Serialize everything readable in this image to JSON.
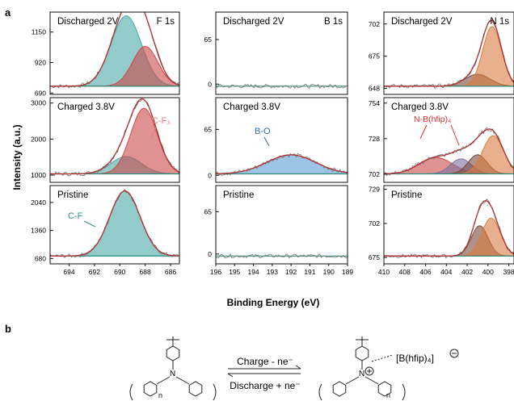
{
  "panel_a_label": "a",
  "panel_b_label": "b",
  "ylabel": "Intensity (a.u.)",
  "xlabel": "Binding Energy (eV)",
  "columns": [
    {
      "element": "F 1s",
      "xticks": [
        "694",
        "692",
        "690",
        "688",
        "686"
      ]
    },
    {
      "element": "B 1s",
      "xticks": [
        "196",
        "195",
        "194",
        "193",
        "192",
        "191",
        "190",
        "189"
      ]
    },
    {
      "element": "N 1s",
      "xticks": [
        "410",
        "408",
        "406",
        "404",
        "402",
        "400",
        "398"
      ]
    }
  ],
  "states": [
    "Discharged 2V",
    "Charged 3.8V",
    "Pristine"
  ],
  "annotations": {
    "cf3": "C-F₃",
    "cf": "C-F",
    "bo": "B-O",
    "nb": "N-B(hfip)₄"
  },
  "colors": {
    "teal": "#4aa9a6",
    "red": "#cc4747",
    "brown": "#7a4a3a",
    "orange": "#d97b3f",
    "blue": "#5b9bd5",
    "purple": "#7f6f9f",
    "envelope_red": "#b03030",
    "raw_gray": "#777777",
    "callout_pink": "#e07a7a",
    "callout_red": "#e03030",
    "callout_blue": "#2f6fb0",
    "callout_teal": "#2e8b86"
  },
  "scheme": {
    "forward": "Charge - ne⁻",
    "reverse": "Discharge + ne⁻",
    "anion": "[B(hfip)₄]",
    "subscript_n": "n"
  },
  "chart_data": [
    {
      "type": "area",
      "panel": "F 1s / Discharged 2V",
      "xlim": [
        695.5,
        685.3
      ],
      "yticks": [
        690,
        920,
        1150
      ],
      "ylim": [
        680,
        1300
      ],
      "series": [
        {
          "center": 689.5,
          "height": 530,
          "width": 1.2
        },
        {
          "center": 688.0,
          "height": 300,
          "width": 1.0
        }
      ]
    },
    {
      "type": "area",
      "panel": "F 1s / Charged 3.8V",
      "xlim": [
        695.5,
        685.3
      ],
      "yticks": [
        1000,
        2000,
        3000
      ],
      "ylim": [
        800,
        3150
      ],
      "series": [
        {
          "center": 689.5,
          "height": 480,
          "width": 1.2
        },
        {
          "center": 688.1,
          "height": 1820,
          "width": 1.05
        }
      ]
    },
    {
      "type": "area",
      "panel": "F 1s / Pristine",
      "xlim": [
        695.5,
        685.3
      ],
      "yticks": [
        680,
        1360,
        2040
      ],
      "ylim": [
        550,
        2450
      ],
      "series": [
        {
          "center": 689.6,
          "height": 1580,
          "width": 1.2
        }
      ]
    },
    {
      "type": "line",
      "panel": "B 1s / Discharged 2V",
      "xlim": [
        196,
        189
      ],
      "yticks": [
        0,
        65
      ],
      "ylim": [
        -15,
        105
      ]
    },
    {
      "type": "area",
      "panel": "B 1s / Charged 3.8V",
      "xlim": [
        196,
        189
      ],
      "yticks": [
        0,
        65
      ],
      "ylim": [
        -10,
        110
      ],
      "series": [
        {
          "center": 192.0,
          "height": 27,
          "width": 1.3
        }
      ]
    },
    {
      "type": "line",
      "panel": "B 1s / Pristine",
      "xlim": [
        196,
        189
      ],
      "yticks": [
        0,
        65
      ],
      "ylim": [
        -15,
        105
      ]
    },
    {
      "type": "area",
      "panel": "N 1s / Discharged 2V",
      "xlim": [
        410,
        397.5
      ],
      "yticks": [
        648,
        675,
        702
      ],
      "ylim": [
        643,
        712
      ],
      "series": [
        {
          "center": 401.0,
          "height": 10,
          "width": 1.2
        },
        {
          "center": 399.6,
          "height": 50,
          "width": 0.9
        }
      ]
    },
    {
      "type": "area",
      "panel": "N 1s / Charged 3.8V",
      "xlim": [
        410,
        397.5
      ],
      "yticks": [
        702,
        728,
        754
      ],
      "ylim": [
        696,
        758
      ],
      "series": [
        {
          "center": 405.0,
          "height": 12,
          "width": 1.6
        },
        {
          "center": 402.6,
          "height": 11,
          "width": 1.0
        },
        {
          "center": 401.0,
          "height": 14,
          "width": 0.9
        },
        {
          "center": 399.5,
          "height": 28,
          "width": 1.0
        }
      ]
    },
    {
      "type": "area",
      "panel": "N 1s / Pristine",
      "xlim": [
        410,
        397.5
      ],
      "yticks": [
        675,
        702,
        729
      ],
      "ylim": [
        670,
        732
      ],
      "series": [
        {
          "center": 400.8,
          "height": 24,
          "width": 0.8
        },
        {
          "center": 399.7,
          "height": 30,
          "width": 0.9
        }
      ]
    }
  ]
}
